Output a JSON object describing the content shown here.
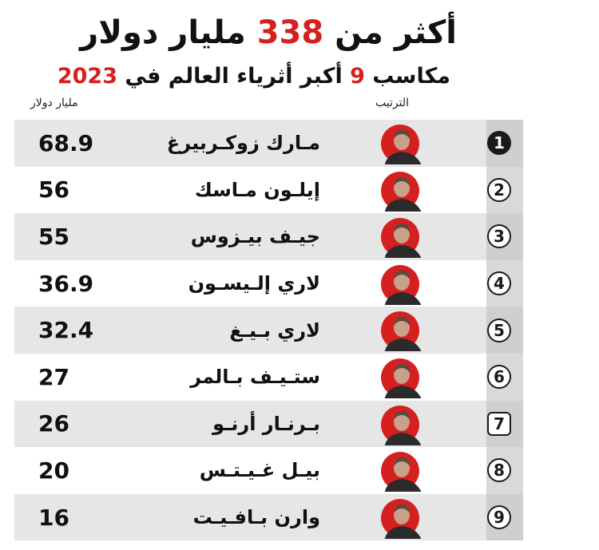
{
  "header": {
    "title_pre": "أكثر من ",
    "title_number": "338",
    "title_post": " مليار دولار",
    "subtitle_pre": "مكاسب ",
    "subtitle_number": "9",
    "subtitle_mid": " أكبر أثرياء العالم في ",
    "subtitle_year": "2023"
  },
  "columns": {
    "unit_label": "مليار دولار",
    "rank_label": "الترتيب"
  },
  "colors": {
    "accent": "#d6201f",
    "dark": "#1a1a1a",
    "row_shade": "#e6e6e6"
  },
  "rows": [
    {
      "rank": "1",
      "name": "مـارك زوكـربيرغ",
      "value": "68.9"
    },
    {
      "rank": "2",
      "name": "إيلـون مـاسك",
      "value": "56"
    },
    {
      "rank": "3",
      "name": "جيـف بيـزوس",
      "value": "55"
    },
    {
      "rank": "4",
      "name": "لاري إلـيسـون",
      "value": "36.9"
    },
    {
      "rank": "5",
      "name": "لاري بـيـغ",
      "value": "32.4"
    },
    {
      "rank": "6",
      "name": "ستـيـف بـالمر",
      "value": "27"
    },
    {
      "rank": "7",
      "name": "بـرنـار أرنـو",
      "value": "26"
    },
    {
      "rank": "8",
      "name": "بيـل غـيـتـس",
      "value": "20"
    },
    {
      "rank": "9",
      "name": "وارن بـافـيـت",
      "value": "16"
    }
  ]
}
